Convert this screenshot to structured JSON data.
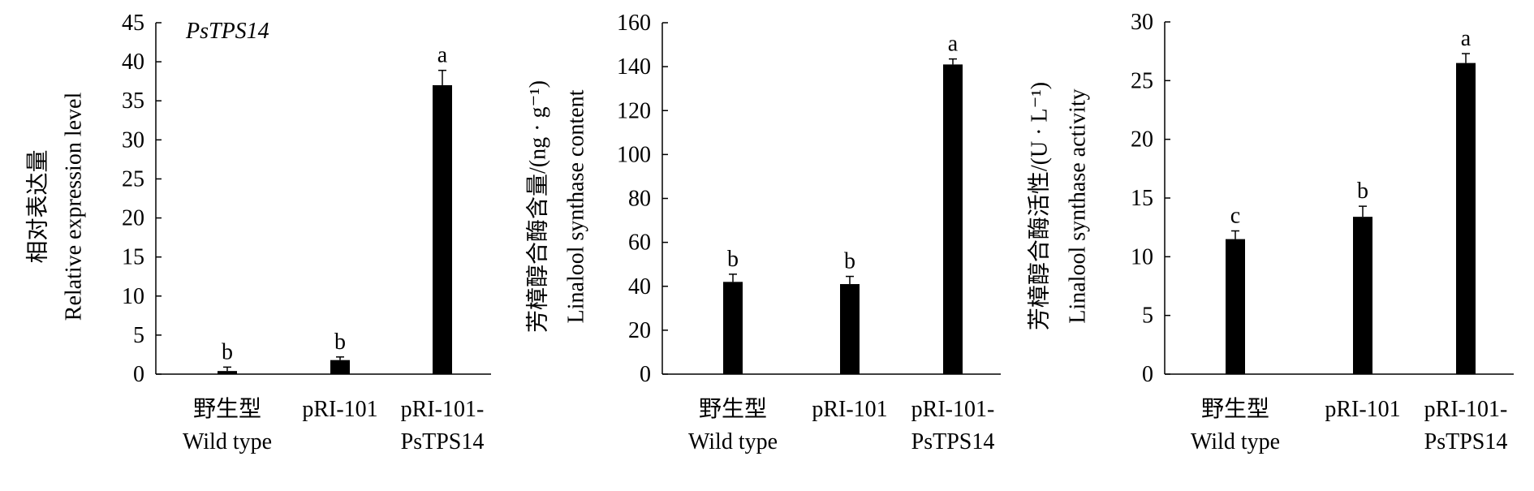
{
  "chart_data": [
    {
      "type": "bar",
      "title": "PsTPS14",
      "categories": [
        [
          "野生型",
          "Wild type"
        ],
        [
          "pRI-101"
        ],
        [
          "pRI-101-",
          "PsTPS14"
        ]
      ],
      "values": [
        0.4,
        1.8,
        37.0
      ],
      "errors": [
        0.5,
        0.4,
        1.9
      ],
      "significance": [
        "b",
        "b",
        "a"
      ],
      "ylabel": [
        "相对表达量",
        "Relative expression level"
      ],
      "ylim": [
        0,
        45
      ],
      "yticks": [
        0,
        5,
        10,
        15,
        20,
        25,
        30,
        35,
        40,
        45
      ],
      "bar_color": "#000000",
      "grid": false
    },
    {
      "type": "bar",
      "title": "",
      "categories": [
        [
          "野生型",
          "Wild type"
        ],
        [
          "pRI-101"
        ],
        [
          "pRI-101-",
          "PsTPS14"
        ]
      ],
      "values": [
        42,
        41,
        141
      ],
      "errors": [
        3.5,
        3.5,
        2.5
      ],
      "significance": [
        "b",
        "b",
        "a"
      ],
      "ylabel": [
        "芳樟醇合酶含量/(ng · g⁻¹)",
        "Linalool synthase content"
      ],
      "ylim": [
        0,
        160
      ],
      "yticks": [
        0,
        20,
        40,
        60,
        80,
        100,
        120,
        140,
        160
      ],
      "bar_color": "#000000",
      "grid": false
    },
    {
      "type": "bar",
      "title": "",
      "categories": [
        [
          "野生型",
          "Wild type"
        ],
        [
          "pRI-101"
        ],
        [
          "pRI-101-",
          "PsTPS14"
        ]
      ],
      "values": [
        11.5,
        13.4,
        26.5
      ],
      "errors": [
        0.7,
        0.9,
        0.8
      ],
      "significance": [
        "c",
        "b",
        "a"
      ],
      "ylabel": [
        "芳樟醇合酶活性/(U · L⁻¹)",
        "Linalool synthase activity"
      ],
      "ylim": [
        0,
        30
      ],
      "yticks": [
        0,
        5,
        10,
        15,
        20,
        25,
        30
      ],
      "bar_color": "#000000",
      "grid": false
    }
  ]
}
